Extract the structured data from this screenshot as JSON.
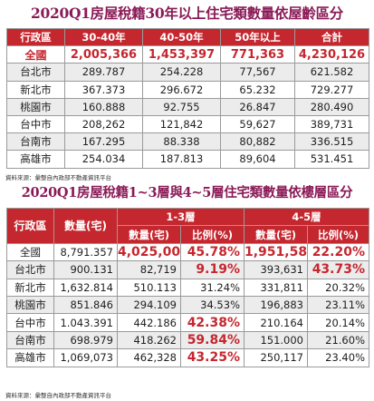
{
  "table1": {
    "title": "2020Q1房屋稅籍30年以上住宅類數量依屋齡區分",
    "headers": [
      "行政區",
      "30-40年",
      "40-50年",
      "50年以上",
      "合計"
    ],
    "rows": [
      {
        "district": "全國",
        "values": [
          "2,005,366",
          "1,453,397",
          "771,363",
          "4,230,126"
        ]
      },
      {
        "district": "台北市",
        "values": [
          "289.787",
          "254.228",
          "77,567",
          "621.582"
        ]
      },
      {
        "district": "新北市",
        "values": [
          "367.373",
          "296.672",
          "65.232",
          "729.277"
        ]
      },
      {
        "district": "桃園市",
        "values": [
          "160.888",
          "92.755",
          "26.847",
          "280.490"
        ]
      },
      {
        "district": "台中市",
        "values": [
          "208,262",
          "121,842",
          "59,627",
          "389,731"
        ]
      },
      {
        "district": "台南市",
        "values": [
          "167.295",
          "88.338",
          "80,882",
          "336.515"
        ]
      },
      {
        "district": "高雄市",
        "values": [
          "254.034",
          "187.813",
          "89,604",
          "531.451"
        ]
      }
    ],
    "source": "資料來源：彙整自內政部不動產資訊平台"
  },
  "table2": {
    "title": "2020Q1房屋稅籍1~3層與4~5層住宅類數量依樓層區分",
    "header_district": "行政區",
    "header_total": "數量(宅)",
    "group1": "1-3層",
    "group2": "4-5層",
    "sub_count": "數量(宅)",
    "sub_ratio": "比例(%)",
    "rows": [
      {
        "district": "全國",
        "total": "8,791.357",
        "c1": "4,025,006",
        "p1": "45.78%",
        "c2": "1,951,585",
        "p2": "22.20%"
      },
      {
        "district": "台北市",
        "total": "900.131",
        "c1": "82,719",
        "p1": "9.19%",
        "c2": "393,631",
        "p2": "43.73%"
      },
      {
        "district": "新北市",
        "total": "1,632.814",
        "c1": "510.113",
        "p1": "31.24%",
        "c2": "331,811",
        "p2": "20.32%"
      },
      {
        "district": "桃園市",
        "total": "851.846",
        "c1": "294.109",
        "p1": "34.53%",
        "c2": "196,883",
        "p2": "23.11%"
      },
      {
        "district": "台中市",
        "total": "1.043.391",
        "c1": "442.186",
        "p1": "42.38%",
        "c2": "210.164",
        "p2": "20.14%"
      },
      {
        "district": "台南市",
        "total": "698.979",
        "c1": "418.262",
        "p1": "59.84%",
        "c2": "151.000",
        "p2": "21.60%"
      },
      {
        "district": "高雄市",
        "total": "1,069,073",
        "c1": "462,328",
        "p1": "43.25%",
        "c2": "250,117",
        "p2": "23.40%"
      }
    ],
    "source": "資料來源：彙整自內政部不動產資訊平台"
  },
  "colors": {
    "title": "#8a1a57",
    "header": "#c5272f",
    "highlight": "#c5272f",
    "alt_row": "#ececec"
  }
}
